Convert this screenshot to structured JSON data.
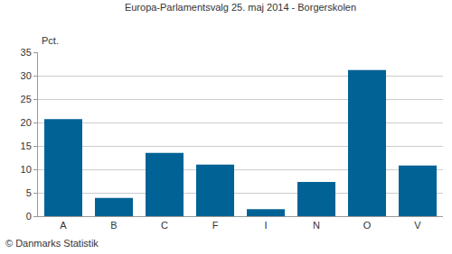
{
  "chart_data": {
    "type": "bar",
    "title": "Europa-Parlamentsvalg 25. maj 2014 - Borgerskolen",
    "ylabel": "Pct.",
    "categories": [
      "A",
      "B",
      "C",
      "F",
      "I",
      "N",
      "O",
      "V"
    ],
    "values": [
      20.7,
      3.9,
      13.5,
      11.0,
      1.5,
      7.3,
      31.2,
      10.8
    ],
    "color": "#006295",
    "ylim": [
      0,
      35
    ],
    "yticks": [
      0,
      5,
      10,
      15,
      20,
      25,
      30,
      35
    ],
    "grid": true,
    "annotations": [
      "© Danmarks Statistik"
    ]
  }
}
